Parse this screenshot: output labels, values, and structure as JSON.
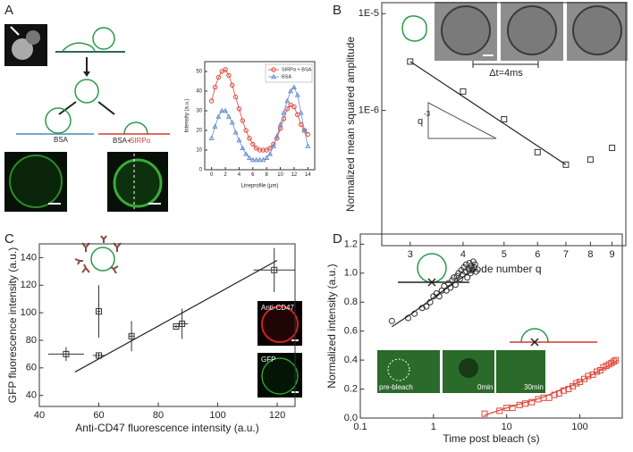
{
  "chart_data": [
    {
      "panel": "A",
      "type": "line",
      "xlabel": "Lineprofile (μm)",
      "ylabel": "Intensity (a.u.)",
      "xlim": [
        -1,
        15
      ],
      "ylim": [
        0,
        55
      ],
      "xticks": [
        0,
        2,
        4,
        6,
        8,
        10,
        12,
        14
      ],
      "yticks": [
        0,
        10,
        20,
        30,
        40,
        50
      ],
      "legend": "upper right",
      "series": [
        {
          "name": "SIRPα + BSA",
          "color": "#e0453a",
          "marker": "circle",
          "style": "line+markers",
          "x": [
            0,
            0.5,
            1,
            1.5,
            2,
            2.5,
            3,
            3.5,
            4,
            4.5,
            5,
            5.5,
            6,
            6.5,
            7,
            7.5,
            8,
            8.5,
            9,
            9.5,
            10,
            10.5,
            11,
            11.5,
            12,
            12.5,
            13,
            13.5,
            14
          ],
          "values": [
            35,
            42,
            47,
            50,
            51,
            48,
            43,
            37,
            31,
            25,
            20,
            16,
            13,
            11,
            10,
            10,
            10,
            11,
            13,
            16,
            21,
            26,
            31,
            33,
            32,
            28,
            23,
            20,
            18
          ]
        },
        {
          "name": "BSA",
          "color": "#6a8fd0",
          "marker": "triangle",
          "style": "line+markers",
          "x": [
            0,
            0.5,
            1,
            1.5,
            2,
            2.5,
            3,
            3.5,
            4,
            4.5,
            5,
            5.5,
            6,
            6.5,
            7,
            7.5,
            8,
            8.5,
            9,
            9.5,
            10,
            10.5,
            11,
            11.5,
            12,
            12.5,
            13,
            13.5,
            14
          ],
          "values": [
            16,
            22,
            27,
            30,
            30,
            27,
            24,
            19,
            15,
            11,
            8,
            6,
            5,
            5,
            5,
            5,
            6,
            8,
            12,
            17,
            23,
            29,
            35,
            40,
            42,
            38,
            29,
            20,
            12
          ]
        }
      ],
      "annotations": [
        {
          "text": "BSA"
        },
        {
          "text": "BSA+"
        },
        {
          "text": "SIRPα",
          "color": "#e0453a"
        }
      ]
    },
    {
      "panel": "B",
      "type": "scatter",
      "xlabel": "Mode number q",
      "ylabel": "Normalized mean squared amplitude",
      "xlog": true,
      "ylog": true,
      "xlim": [
        2.57,
        9.7
      ],
      "ylim": [
        4e-08,
        1.3e-05
      ],
      "xticks": [
        3,
        4,
        5,
        6,
        7,
        8,
        9
      ],
      "yticks": [
        {
          "value": 1e-06,
          "label": "1E-6"
        },
        {
          "value": 1e-05,
          "label": "1E-5"
        }
      ],
      "series": [
        {
          "color": "#333333",
          "marker": "square",
          "style": "markers",
          "x": [
            3,
            4,
            5,
            6,
            7,
            8,
            9
          ],
          "values": [
            3.2e-06,
            1.57e-06,
            8.1e-07,
            3.7e-07,
            2.75e-07,
            3.1e-07,
            4.1e-07
          ]
        },
        {
          "color": "#222222",
          "style": "line",
          "x": [
            3,
            7
          ],
          "values": [
            3.2e-06,
            2.75e-07
          ]
        }
      ],
      "annotations": [
        {
          "text": "Δt=4ms"
        },
        {
          "text": "q"
        },
        {
          "text": "-3"
        }
      ]
    },
    {
      "panel": "C",
      "type": "scatter",
      "xlabel": "Anti-CD47 fluorescence intensity (a.u.)",
      "ylabel": "GFP fluorescence intensity (a.u.)",
      "xlim": [
        40,
        126
      ],
      "ylim": [
        32,
        150
      ],
      "xticks": [
        40,
        60,
        80,
        100,
        120
      ],
      "yticks": [
        40,
        60,
        80,
        100,
        120,
        140
      ],
      "series": [
        {
          "color": "#333333",
          "marker": "square",
          "style": "markers",
          "x": [
            49,
            60,
            60,
            71,
            86,
            88,
            119
          ],
          "values": [
            70,
            69,
            101,
            83,
            90,
            92,
            131
          ],
          "xerr": [
            6,
            2,
            0.5,
            1,
            1,
            2,
            7
          ],
          "yerr": [
            5,
            2,
            19,
            11,
            1,
            11,
            16
          ]
        },
        {
          "color": "#222222",
          "style": "line",
          "x": [
            52,
            120
          ],
          "values": [
            57,
            138
          ]
        }
      ],
      "annotations": [
        {
          "text": "Anti-CD47"
        },
        {
          "text": "GFP"
        }
      ]
    },
    {
      "panel": "D",
      "type": "scatter",
      "xlabel": "Time post bleach (s)",
      "ylabel": "Normalized intensity (a.u.)",
      "xlog": true,
      "xlim": [
        0.1,
        380
      ],
      "ylim": [
        0,
        1.27
      ],
      "xticks": [
        0.1,
        1,
        10,
        100
      ],
      "yticks": [
        {
          "value": 0,
          "label": "0.0"
        },
        {
          "value": 0.2,
          "label": "0.2"
        },
        {
          "value": 0.4,
          "label": "0.4"
        },
        {
          "value": 0.6,
          "label": "0.6"
        },
        {
          "value": 0.8,
          "label": "0.8"
        },
        {
          "value": 1,
          "label": "1.0"
        },
        {
          "value": 1.2,
          "label": "1.2"
        }
      ],
      "series": [
        {
          "color": "#333333",
          "marker": "circle",
          "style": "markers",
          "x": [
            0.27,
            0.45,
            0.55,
            0.7,
            0.8,
            0.9,
            1.0,
            1.1,
            1.2,
            1.3,
            1.4,
            1.5,
            1.6,
            1.7,
            1.8,
            1.9,
            2.0,
            2.1,
            2.2,
            2.3,
            2.4,
            2.5,
            2.6,
            2.7,
            2.8,
            2.9,
            3.0,
            3.1,
            3.2,
            3.3,
            3.4,
            3.5,
            3.6,
            3.7,
            3.8
          ],
          "values": [
            0.67,
            0.69,
            0.72,
            0.76,
            0.77,
            0.8,
            0.84,
            0.86,
            0.84,
            0.88,
            0.91,
            0.88,
            0.93,
            0.9,
            0.95,
            0.97,
            0.92,
            0.98,
            1.0,
            0.96,
            1.02,
            0.99,
            1.04,
            1.01,
            1.06,
            0.97,
            1.03,
            1.07,
            1.0,
            1.05,
            1.02,
            1.08,
            1.04,
            1.06,
            1.01
          ]
        },
        {
          "color": "#222222",
          "style": "line",
          "x": [
            0.27,
            0.5,
            1,
            2,
            3.8
          ],
          "values": [
            0.63,
            0.72,
            0.83,
            0.94,
            1.03
          ]
        },
        {
          "color": "#e0453a",
          "marker": "square",
          "style": "markers",
          "x": [
            5,
            8,
            10,
            12,
            15,
            18,
            22,
            27,
            32,
            38,
            45,
            52,
            60,
            70,
            80,
            90,
            100,
            115,
            130,
            150,
            170,
            190,
            210,
            230,
            250,
            270,
            290,
            310
          ],
          "values": [
            0.03,
            0.05,
            0.07,
            0.07,
            0.09,
            0.1,
            0.11,
            0.13,
            0.14,
            0.14,
            0.16,
            0.17,
            0.19,
            0.2,
            0.22,
            0.24,
            0.25,
            0.27,
            0.29,
            0.3,
            0.32,
            0.33,
            0.35,
            0.36,
            0.37,
            0.38,
            0.39,
            0.4
          ]
        },
        {
          "color": "#e0453a",
          "style": "line",
          "x": [
            5,
            10,
            30,
            100,
            330
          ],
          "values": [
            0.02,
            0.07,
            0.14,
            0.25,
            0.4
          ]
        }
      ],
      "annotations": [
        {
          "text": "pre-bleach"
        },
        {
          "text": "0min"
        },
        {
          "text": "30min"
        }
      ]
    }
  ]
}
